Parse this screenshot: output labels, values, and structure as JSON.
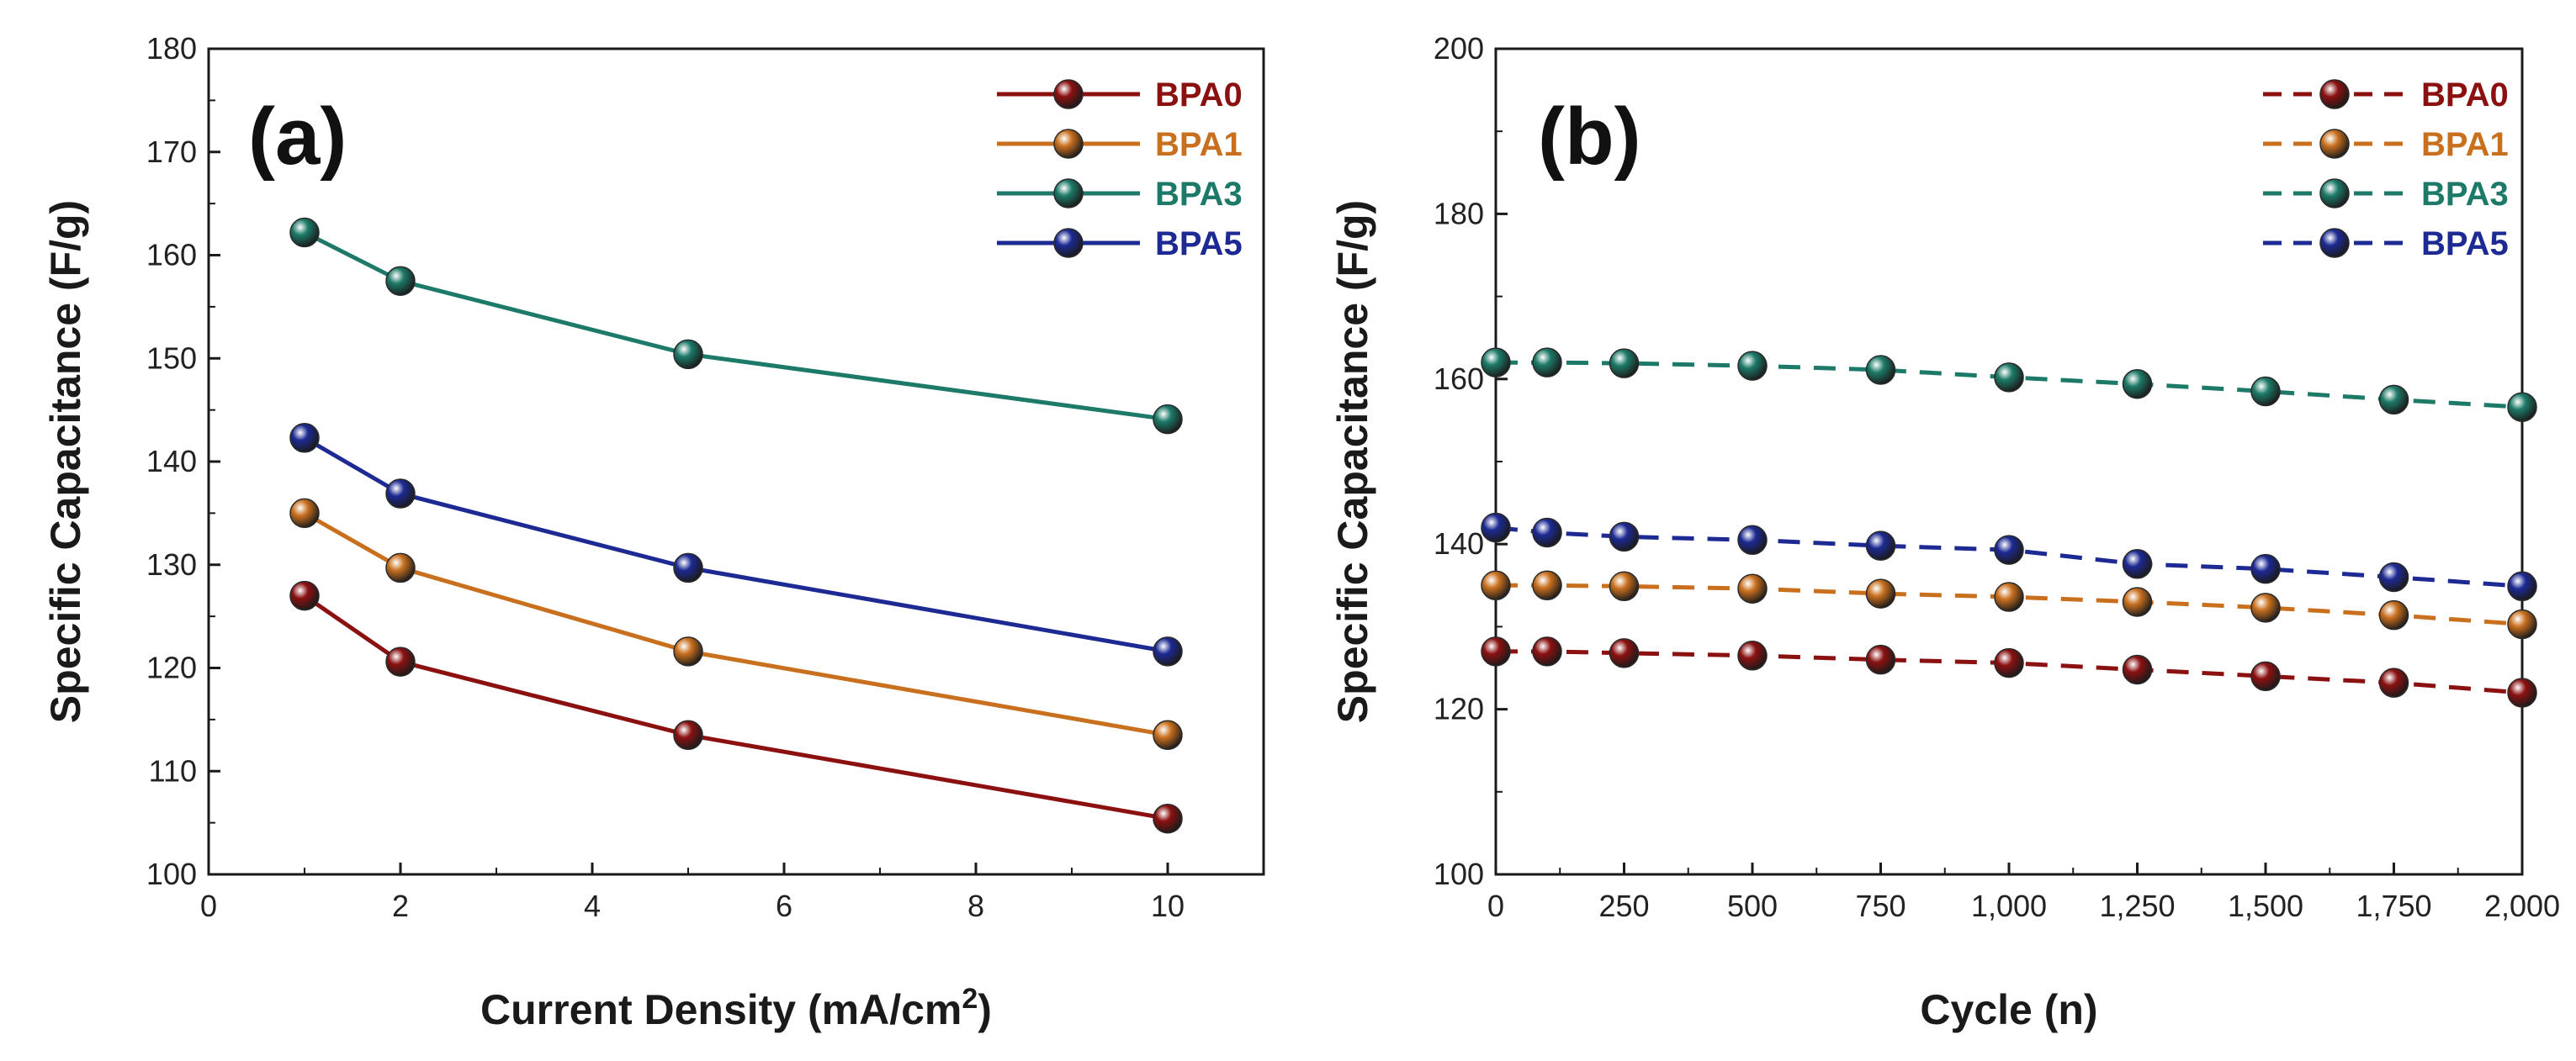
{
  "colors": {
    "BPA0": "#8b1111",
    "BPA1": "#c9701f",
    "BPA3": "#1d7a68",
    "BPA5": "#1d2a93"
  },
  "chart_data": [
    {
      "type": "line",
      "panel_label": "(a)",
      "xlabel_main": "Current Density (mA/cm",
      "xlabel_sup": "2",
      "xlabel_end": ")",
      "ylabel": "Specific Capacitance (F/g)",
      "xlim": [
        0,
        11
      ],
      "ylim": [
        100,
        180
      ],
      "x_ticks": [
        "0",
        "2",
        "4",
        "6",
        "8",
        "10"
      ],
      "y_ticks": [
        "100",
        "110",
        "120",
        "130",
        "140",
        "150",
        "160",
        "170",
        "180"
      ],
      "line_style": "solid",
      "legend_position": "top-right",
      "x": [
        1,
        2,
        5,
        10
      ],
      "series": [
        {
          "name": "BPA0",
          "values": [
            127.0,
            120.6,
            113.5,
            105.4
          ]
        },
        {
          "name": "BPA1",
          "values": [
            135.0,
            129.7,
            121.6,
            113.5
          ]
        },
        {
          "name": "BPA3",
          "values": [
            162.2,
            157.5,
            150.4,
            144.1
          ]
        },
        {
          "name": "BPA5",
          "values": [
            142.3,
            136.9,
            129.7,
            121.6
          ]
        }
      ]
    },
    {
      "type": "line",
      "panel_label": "(b)",
      "xlabel_main": "Cycle (n)",
      "xlabel_sup": "",
      "xlabel_end": "",
      "ylabel": "Specific Capacitance (F/g)",
      "xlim": [
        0,
        2000
      ],
      "ylim": [
        100,
        200
      ],
      "x_ticks": [
        "0",
        "250",
        "500",
        "750",
        "1,000",
        "1,250",
        "1,500",
        "1,750",
        "2,000"
      ],
      "y_ticks": [
        "100",
        "120",
        "140",
        "160",
        "180",
        "200"
      ],
      "line_style": "dashed",
      "legend_position": "top-right",
      "x": [
        0,
        100,
        250,
        500,
        750,
        1000,
        1250,
        1500,
        1750,
        2000
      ],
      "series": [
        {
          "name": "BPA0",
          "values": [
            127.0,
            127.0,
            126.8,
            126.5,
            126.0,
            125.6,
            124.8,
            124.0,
            123.2,
            122.0
          ]
        },
        {
          "name": "BPA1",
          "values": [
            135.0,
            135.0,
            134.9,
            134.6,
            134.0,
            133.6,
            133.0,
            132.3,
            131.4,
            130.3
          ]
        },
        {
          "name": "BPA3",
          "values": [
            162.0,
            162.0,
            161.9,
            161.6,
            161.1,
            160.2,
            159.4,
            158.5,
            157.5,
            156.6
          ]
        },
        {
          "name": "BPA5",
          "values": [
            142.0,
            141.4,
            140.9,
            140.5,
            139.8,
            139.3,
            137.6,
            137.0,
            136.0,
            134.9
          ]
        }
      ]
    }
  ]
}
